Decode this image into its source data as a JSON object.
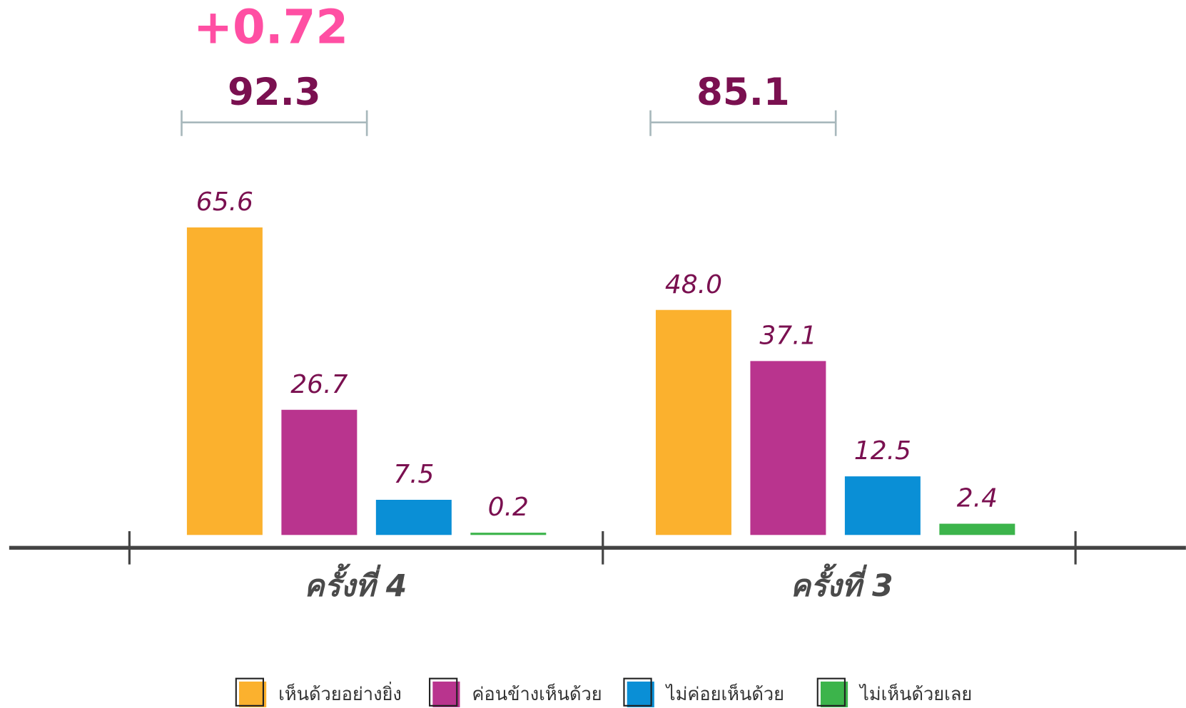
{
  "chart_data": {
    "type": "bar",
    "categories": [
      "ครั้งที่ 4",
      "ครั้งที่ 3"
    ],
    "series": [
      {
        "name": "เห็นด้วยอย่างยิ่ง",
        "color": "#fbb12e",
        "values": [
          65.6,
          48.0
        ],
        "value_labels": [
          "65.6",
          "48.0"
        ]
      },
      {
        "name": "ค่อนข้างเห็นด้วย",
        "color": "#b9348e",
        "values": [
          26.7,
          37.1
        ],
        "value_labels": [
          "26.7",
          "37.1"
        ]
      },
      {
        "name": "ไม่ค่อยเห็นด้วย",
        "color": "#0a8fd6",
        "values": [
          7.5,
          12.5
        ],
        "value_labels": [
          "7.5",
          "12.5"
        ]
      },
      {
        "name": "ไม่เห็นด้วยเลย",
        "color": "#3cb44b",
        "values": [
          0.2,
          2.4
        ],
        "value_labels": [
          "0.2",
          "2.4"
        ]
      }
    ],
    "annotations": {
      "change": "+0.72",
      "totals": [
        "92.3",
        "85.1"
      ]
    },
    "legend": "bottom"
  }
}
